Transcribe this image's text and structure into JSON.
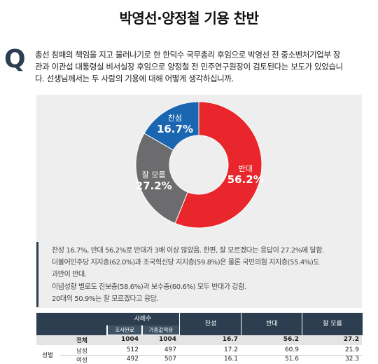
{
  "title": "박영선·양정철 기용 찬반",
  "question": {
    "mark": "Q",
    "lines": [
      "총선 참패의 책임을 지고 물러나기로 한 한덕수 국무총리 후임으로 박영선 전 중소벤처기업부 장",
      "관과 이관섭 대통령실 비서실장 후임으로 양정철 전 민주연구원장이 검토된다는 보도가 있었습니",
      "다. 선생님께서는 두 사람의 기용에 대해 어떻게 생각하십니까."
    ]
  },
  "chart_data": {
    "type": "pie",
    "donut": true,
    "slices": [
      {
        "label": "반대",
        "value": 56.2,
        "display": "56.2%",
        "color": "#e8262b"
      },
      {
        "label": "잘 모름",
        "value": 27.2,
        "display": "27.2%",
        "color": "#6c6c6e"
      },
      {
        "label": "찬성",
        "value": 16.7,
        "display": "16.7%",
        "color": "#1a66b1"
      }
    ]
  },
  "summary": [
    "찬성 16.7%, 반대 56.2%로 반대가 3배 이상 많았음. 한편, 잘 모르겠다는 응답이 27.2%에 달함.",
    "더불어민주당 지지층(62.0%)과 조국혁신당 지지층(59.8%)은 물론 국민의힘 지지층(55.4%)도",
    "과반이 반대.",
    "이념성향 별로도 진보층(58.6%)과 보수층(60.6%) 모두 반대가 강함.",
    "20대의 50.9%는 잘 모르겠다고 응답."
  ],
  "table": {
    "group_header": "사례수",
    "sub_headers": [
      "조사완료",
      "가중값적용"
    ],
    "columns": [
      "찬성",
      "반대",
      "잘 모름"
    ],
    "rows": [
      {
        "group": "",
        "label": "전체",
        "n1": "1004",
        "n2": "1004",
        "vals": [
          "16.7",
          "56.2",
          "27.2"
        ]
      },
      {
        "group": "성별",
        "label": "남성",
        "n1": "512",
        "n2": "497",
        "vals": [
          "17.2",
          "60.9",
          "21.9"
        ]
      },
      {
        "group": "",
        "label": "여성",
        "n1": "492",
        "n2": "507",
        "vals": [
          "16.1",
          "51.6",
          "32.3"
        ]
      }
    ]
  }
}
